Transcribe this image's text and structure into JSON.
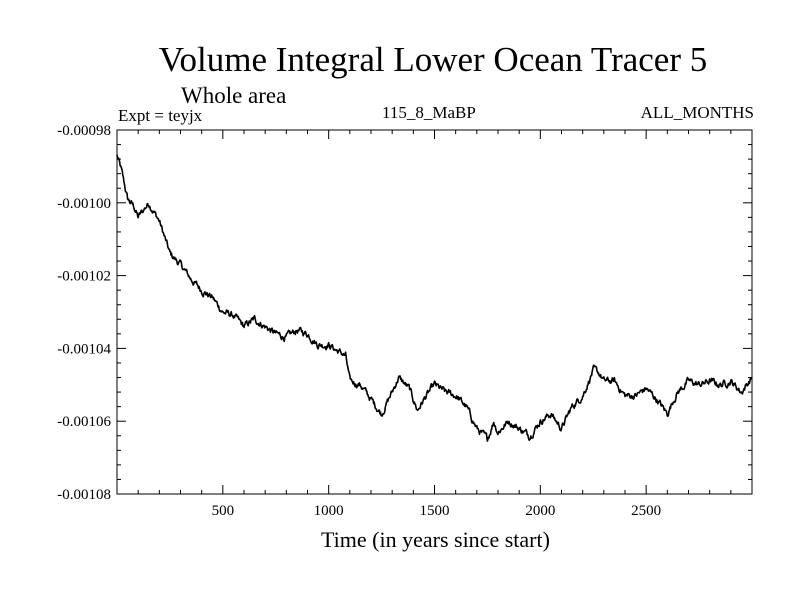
{
  "chart_data": {
    "type": "line",
    "title": "Volume Integral Lower Ocean Tracer 5",
    "subtitle": "Whole area",
    "expt_label": "Expt = teyjx",
    "run_label": "115_8_MaBP",
    "months_label": "ALL_MONTHS",
    "xlabel": "Time (in years since start)",
    "ylabel": "",
    "xlim": [
      0,
      3000
    ],
    "ylim": [
      -0.00108,
      -0.00098
    ],
    "x_ticks": [
      500,
      1000,
      1500,
      2000,
      2500
    ],
    "x_tick_labels": [
      "500",
      "1000",
      "1500",
      "2000",
      "2500"
    ],
    "y_ticks": [
      -0.00098,
      -0.001,
      -0.00102,
      -0.00104,
      -0.00106,
      -0.00108
    ],
    "y_tick_labels": [
      "-0.00098",
      "-0.00100",
      "-0.00102",
      "-0.00104",
      "-0.00106",
      "-0.00108"
    ],
    "series": [
      {
        "name": "Lower Ocean Tracer 5",
        "color": "#000000",
        "x": [
          0,
          20,
          50,
          80,
          100,
          150,
          200,
          250,
          300,
          350,
          400,
          450,
          500,
          550,
          600,
          650,
          700,
          750,
          800,
          850,
          900,
          950,
          1000,
          1050,
          1080,
          1100,
          1150,
          1200,
          1250,
          1300,
          1330,
          1380,
          1420,
          1450,
          1500,
          1550,
          1600,
          1650,
          1700,
          1750,
          1780,
          1800,
          1850,
          1900,
          1950,
          2000,
          2050,
          2100,
          2150,
          2200,
          2250,
          2280,
          2300,
          2350,
          2400,
          2450,
          2500,
          2550,
          2600,
          2630,
          2650,
          2700,
          2750,
          2800,
          2850,
          2900,
          2950,
          3000
        ],
        "y": [
          -0.000987,
          -0.000991,
          -0.000999,
          -0.001001,
          -0.001004,
          -0.001,
          -0.001005,
          -0.001014,
          -0.001017,
          -0.001021,
          -0.001024,
          -0.001026,
          -0.00103,
          -0.001031,
          -0.001034,
          -0.001032,
          -0.001034,
          -0.001036,
          -0.001037,
          -0.001035,
          -0.001036,
          -0.001039,
          -0.001039,
          -0.001041,
          -0.001042,
          -0.001049,
          -0.00105,
          -0.001054,
          -0.001058,
          -0.001052,
          -0.001048,
          -0.001051,
          -0.001057,
          -0.001054,
          -0.00105,
          -0.001052,
          -0.001053,
          -0.001056,
          -0.001062,
          -0.001065,
          -0.00106,
          -0.001063,
          -0.00106,
          -0.001062,
          -0.001064,
          -0.00106,
          -0.001058,
          -0.001062,
          -0.001056,
          -0.001053,
          -0.001046,
          -0.001047,
          -0.001049,
          -0.001049,
          -0.001053,
          -0.001053,
          -0.001051,
          -0.001054,
          -0.001058,
          -0.001054,
          -0.001052,
          -0.001049,
          -0.00105,
          -0.001049,
          -0.00105,
          -0.001049,
          -0.001052,
          -0.001048
        ]
      }
    ]
  }
}
